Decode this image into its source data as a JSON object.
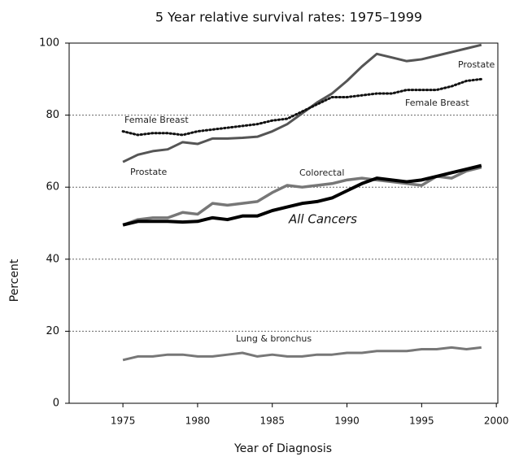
{
  "chart_data": {
    "type": "line",
    "title": "5 Year relative survival rates: 1975–1999",
    "xlabel": "Year of Diagnosis",
    "ylabel": "Percent",
    "x": [
      1975,
      1976,
      1977,
      1978,
      1979,
      1980,
      1981,
      1982,
      1983,
      1984,
      1985,
      1986,
      1987,
      1988,
      1989,
      1990,
      1991,
      1992,
      1993,
      1994,
      1995,
      1996,
      1997,
      1998,
      1999
    ],
    "series": [
      {
        "name": "Prostate",
        "color": "#555555",
        "width": 3,
        "dash": "solid",
        "values": [
          67,
          69,
          70,
          70.5,
          72.5,
          72,
          73.5,
          73.5,
          73.7,
          74,
          75.5,
          77.5,
          80.5,
          83.5,
          86,
          89.5,
          93.5,
          97,
          96,
          95,
          95.5,
          96.5,
          97.5,
          98.5,
          99.5
        ]
      },
      {
        "name": "Female Breast",
        "color": "#111111",
        "width": 3,
        "dash": "dotted",
        "values": [
          75.5,
          74.5,
          75,
          75,
          74.5,
          75.5,
          76,
          76.5,
          77,
          77.5,
          78.5,
          79,
          81,
          83,
          85,
          85,
          85.5,
          86,
          86,
          87,
          87,
          87,
          88,
          89.5,
          90
        ]
      },
      {
        "name": "Colorectal",
        "color": "#777777",
        "width": 3.5,
        "dash": "solid",
        "values": [
          49.5,
          51,
          51.5,
          51.5,
          53,
          52.5,
          55.5,
          55,
          55.5,
          56,
          58.5,
          60.5,
          60,
          60.5,
          61,
          62,
          62.5,
          62,
          61.5,
          61,
          60.5,
          63,
          62.5,
          64.5,
          65.5
        ]
      },
      {
        "name": "All Cancers",
        "color": "#000000",
        "width": 4,
        "dash": "solid",
        "values": [
          49.5,
          50.5,
          50.5,
          50.5,
          50.3,
          50.5,
          51.5,
          51,
          52,
          52,
          53.5,
          54.5,
          55.5,
          56,
          57,
          59,
          61,
          62.5,
          62,
          61.5,
          62,
          63,
          64,
          65,
          66
        ]
      },
      {
        "name": "Lung & bronchus",
        "color": "#777777",
        "width": 3,
        "dash": "solid",
        "values": [
          12,
          13,
          13,
          13.5,
          13.5,
          13,
          13,
          13.5,
          14,
          13,
          13.5,
          13,
          13,
          13.5,
          13.5,
          14,
          14,
          14.5,
          14.5,
          14.5,
          15,
          15,
          15.5,
          15,
          15.5
        ]
      }
    ],
    "xlim": [
      1971.4,
      2000.1
    ],
    "ylim": [
      0,
      100
    ],
    "xticks": [
      1975,
      1980,
      1985,
      1990,
      1995,
      2000
    ],
    "yticks": [
      0,
      20,
      40,
      60,
      80,
      100
    ],
    "grid": true
  }
}
